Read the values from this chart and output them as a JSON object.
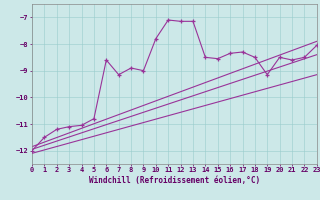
{
  "xlabel": "Windchill (Refroidissement éolien,°C)",
  "bg_color": "#cce8e8",
  "line_color": "#993399",
  "xmin": 0,
  "xmax": 23,
  "ymin": -12.5,
  "ymax": -6.5,
  "yticks": [
    -12,
    -11,
    -10,
    -9,
    -8,
    -7
  ],
  "xticks": [
    0,
    1,
    2,
    3,
    4,
    5,
    6,
    7,
    8,
    9,
    10,
    11,
    12,
    13,
    14,
    15,
    16,
    17,
    18,
    19,
    20,
    21,
    22,
    23
  ],
  "main_x": [
    0,
    1,
    2,
    3,
    4,
    5,
    6,
    7,
    8,
    9,
    10,
    11,
    12,
    13,
    14,
    15,
    16,
    17,
    18,
    19,
    20,
    21,
    22,
    23
  ],
  "main_y": [
    -12.0,
    -11.5,
    -11.2,
    -11.1,
    -11.05,
    -10.8,
    -8.6,
    -9.15,
    -8.9,
    -9.0,
    -7.8,
    -7.1,
    -7.15,
    -7.15,
    -8.5,
    -8.55,
    -8.35,
    -8.3,
    -8.5,
    -9.15,
    -8.5,
    -8.6,
    -8.5,
    -8.05
  ],
  "line2_x": [
    0,
    23
  ],
  "line2_y": [
    -11.85,
    -7.9
  ],
  "line3_x": [
    0,
    23
  ],
  "line3_y": [
    -11.95,
    -8.4
  ],
  "line4_x": [
    0,
    23
  ],
  "line4_y": [
    -12.1,
    -9.15
  ]
}
